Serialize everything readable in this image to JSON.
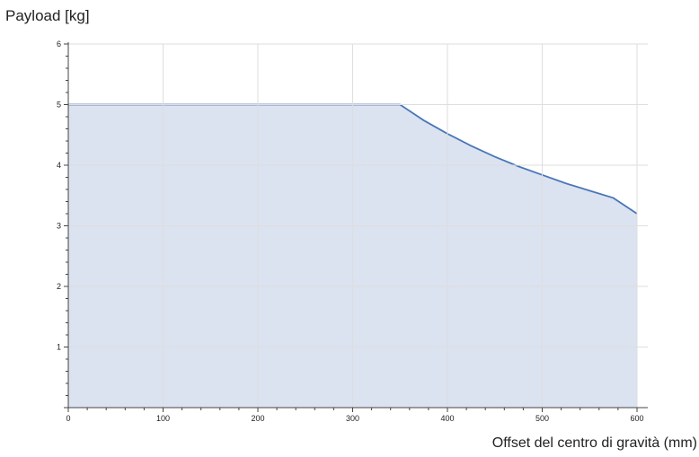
{
  "chart_data": {
    "type": "area",
    "title": "",
    "xlabel": "Offset del centro di gravità (mm)",
    "ylabel": "Payload [kg]",
    "xlim": [
      0,
      600
    ],
    "ylim": [
      0,
      6
    ],
    "x_ticks": [
      "0",
      "100",
      "200",
      "300",
      "400",
      "500",
      "600"
    ],
    "y_ticks": [
      "1",
      "2",
      "3",
      "4",
      "5",
      "6"
    ],
    "grid": true,
    "series": [
      {
        "x": [
          0,
          350,
          375,
          400,
          425,
          450,
          475,
          500,
          525,
          550,
          575,
          600
        ],
        "y": [
          5.0,
          5.0,
          4.74,
          4.52,
          4.32,
          4.14,
          3.98,
          3.84,
          3.7,
          3.58,
          3.46,
          3.2
        ]
      }
    ],
    "colors": {
      "line": "#4a76b8",
      "fill": "#dbe2f0",
      "grid": "#dedede",
      "axis": "#444444"
    }
  }
}
